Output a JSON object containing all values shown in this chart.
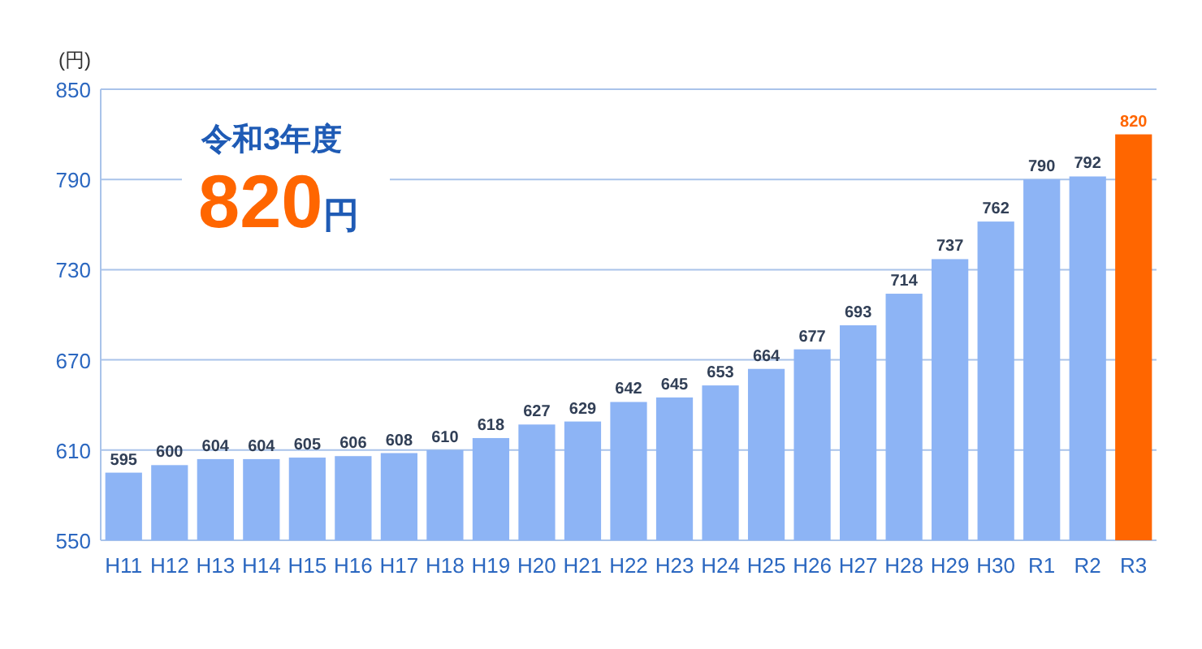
{
  "chart_data": {
    "type": "bar",
    "ylabel": "(円)",
    "annotations": [
      "令和3年度",
      "820円"
    ],
    "categories": [
      "H11",
      "H12",
      "H13",
      "H14",
      "H15",
      "H16",
      "H17",
      "H18",
      "H19",
      "H20",
      "H21",
      "H22",
      "H23",
      "H24",
      "H25",
      "H26",
      "H27",
      "H28",
      "H29",
      "H30",
      "R1",
      "R2",
      "R3"
    ],
    "values": [
      595,
      600,
      604,
      604,
      605,
      606,
      608,
      610,
      618,
      627,
      629,
      642,
      645,
      653,
      664,
      677,
      693,
      714,
      737,
      762,
      790,
      792,
      820
    ],
    "colors": [
      "#8db4f5",
      "#8db4f5",
      "#8db4f5",
      "#8db4f5",
      "#8db4f5",
      "#8db4f5",
      "#8db4f5",
      "#8db4f5",
      "#8db4f5",
      "#8db4f5",
      "#8db4f5",
      "#8db4f5",
      "#8db4f5",
      "#8db4f5",
      "#8db4f5",
      "#8db4f5",
      "#8db4f5",
      "#8db4f5",
      "#8db4f5",
      "#8db4f5",
      "#8db4f5",
      "#8db4f5",
      "#ff6600"
    ],
    "ylim": [
      550,
      850
    ],
    "yticks": [
      550,
      610,
      670,
      730,
      790,
      850
    ],
    "grid": "y",
    "data_labels": true
  }
}
